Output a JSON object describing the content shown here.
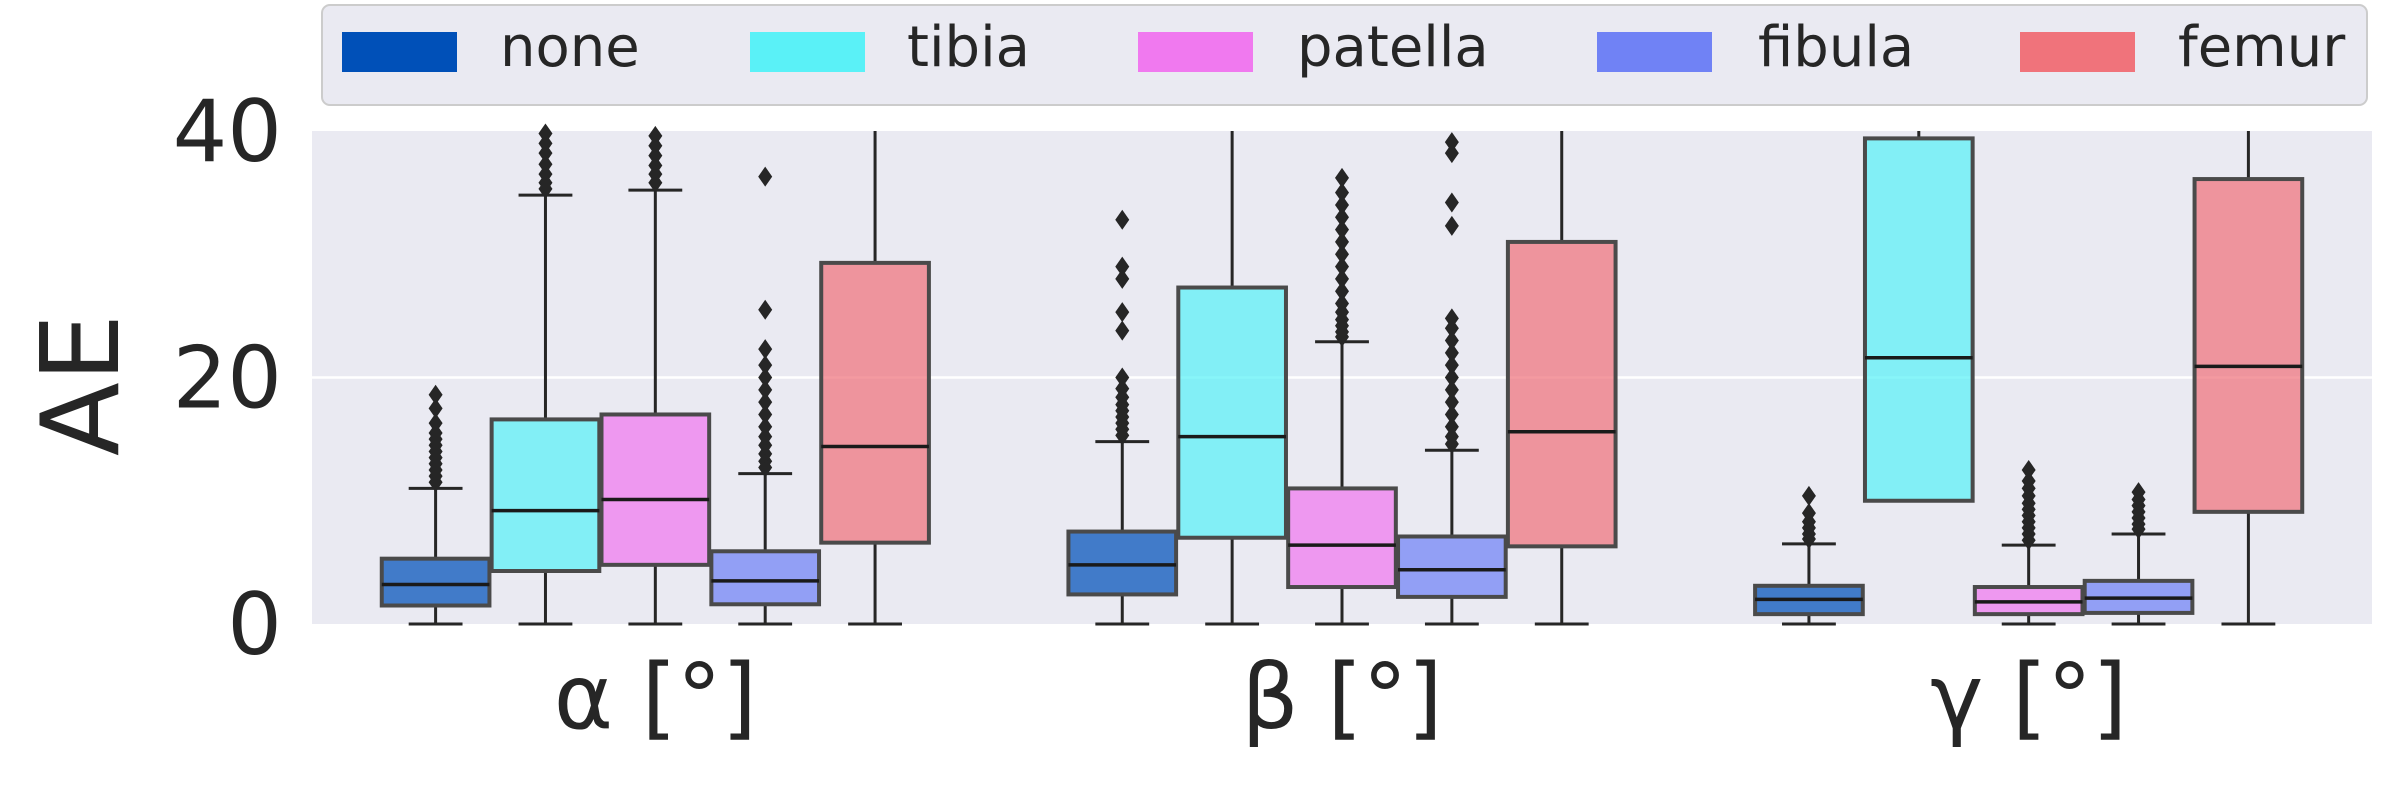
{
  "chart_data": {
    "type": "box",
    "ylabel": "AE",
    "ylim": [
      0,
      40
    ],
    "y_ticks": [
      "0",
      "20",
      "40"
    ],
    "grid": true,
    "legend_position": "top",
    "categories": [
      "α [°]",
      "β [°]",
      "γ [°]"
    ],
    "series": [
      {
        "name": "none",
        "color": "#0050b8",
        "boxes": [
          {
            "min": 0,
            "q1": 1.5,
            "median": 3.2,
            "q3": 5.3,
            "max": 11.0,
            "outliers": [
              11.5,
              12,
              12.5,
              13,
              13.5,
              14,
              14.5,
              15,
              15.5,
              16.3,
              17.5,
              18.6
            ]
          },
          {
            "min": 0,
            "q1": 2.4,
            "median": 4.8,
            "q3": 7.5,
            "max": 14.8,
            "outliers": [
              15.3,
              15.8,
              16.3,
              16.8,
              17.3,
              17.8,
              18.4,
              19.1,
              20.0,
              23.8,
              25.3,
              28.0,
              29.0,
              32.8
            ]
          },
          {
            "min": 0,
            "q1": 0.8,
            "median": 2.0,
            "q3": 3.1,
            "max": 6.5,
            "outliers": [
              6.9,
              7.3,
              7.8,
              8.3,
              9.0,
              10.4
            ]
          }
        ]
      },
      {
        "name": "tibia",
        "color": "#5af1f7",
        "boxes": [
          {
            "min": 0,
            "q1": 4.3,
            "median": 9.2,
            "q3": 16.6,
            "max": 34.8,
            "outliers": [
              35.3,
              35.8,
              36.5,
              37.3,
              38.2,
              39.0,
              39.8
            ]
          },
          {
            "min": 0,
            "q1": 7.0,
            "median": 15.2,
            "q3": 27.3,
            "max": 40,
            "outliers": []
          },
          {
            "min": 10.0,
            "q1": 10.0,
            "median": 21.6,
            "q3": 39.4,
            "max": 40,
            "outliers": []
          }
        ]
      },
      {
        "name": "patella",
        "color": "#f079ef",
        "boxes": [
          {
            "min": 0,
            "q1": 4.8,
            "median": 10.1,
            "q3": 17.0,
            "max": 35.2,
            "outliers": [
              35.8,
              36.5,
              37.2,
              38.0,
              38.8,
              39.6
            ]
          },
          {
            "min": 0,
            "q1": 3.0,
            "median": 6.4,
            "q3": 11.0,
            "max": 22.9,
            "outliers": [
              23.3,
              23.7,
              24.2,
              24.7,
              25.3,
              26,
              27,
              28,
              29,
              30,
              31,
              32,
              33,
              34,
              35,
              36.2
            ]
          },
          {
            "min": 0,
            "q1": 0.8,
            "median": 1.8,
            "q3": 3.0,
            "max": 6.4,
            "outliers": [
              6.8,
              7.3,
              7.8,
              8.3,
              8.8,
              9.3,
              9.8,
              10.4,
              11.0,
              11.6,
              12.5
            ]
          }
        ]
      },
      {
        "name": "fibula",
        "color": "#7082f5",
        "boxes": [
          {
            "min": 0,
            "q1": 1.6,
            "median": 3.5,
            "q3": 5.9,
            "max": 12.2,
            "outliers": [
              12.7,
              13.2,
              13.8,
              14.5,
              15.2,
              16.0,
              17.0,
              18.0,
              19.0,
              20.0,
              21.0,
              22.3,
              25.5,
              36.3
            ]
          },
          {
            "min": 0,
            "q1": 2.2,
            "median": 4.4,
            "q3": 7.1,
            "max": 14.1,
            "outliers": [
              14.6,
              15.2,
              16,
              17,
              18,
              19,
              20,
              21,
              22,
              23,
              24,
              24.8,
              32.3,
              34.2,
              38.2,
              39.1
            ]
          },
          {
            "min": 0,
            "q1": 0.9,
            "median": 2.1,
            "q3": 3.5,
            "max": 7.3,
            "outliers": [
              7.7,
              8.1,
              8.6,
              9.1,
              9.6,
              10.1,
              10.7
            ]
          }
        ]
      },
      {
        "name": "femur",
        "color": "#f0737b",
        "boxes": [
          {
            "min": 0,
            "q1": 6.6,
            "median": 14.4,
            "q3": 29.3,
            "max": 40,
            "outliers": []
          },
          {
            "min": 0,
            "q1": 6.3,
            "median": 15.6,
            "q3": 31.0,
            "max": 40,
            "outliers": []
          },
          {
            "min": 0,
            "q1": 9.1,
            "median": 20.9,
            "q3": 36.1,
            "max": 40,
            "outliers": []
          }
        ]
      }
    ]
  }
}
